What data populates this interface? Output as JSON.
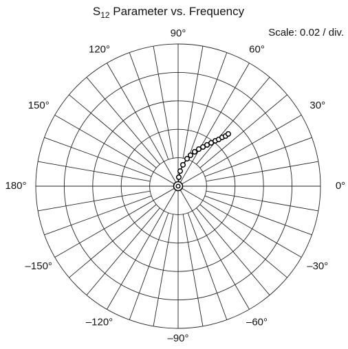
{
  "chart_data": {
    "type": "polar",
    "title": {
      "main": "S",
      "sub": "12",
      "rest": " Parameter vs. Frequency"
    },
    "annotation": "Scale: 0.02 / div.",
    "rlim": [
      0,
      0.1
    ],
    "rticks": [
      0.02,
      0.04,
      0.06,
      0.08,
      0.1
    ],
    "theta_grid_step": 10,
    "thetaticks": [
      {
        "value": 0,
        "label": "0°"
      },
      {
        "value": 30,
        "label": "30°"
      },
      {
        "value": 60,
        "label": "60°"
      },
      {
        "value": 90,
        "label": "90°"
      },
      {
        "value": 120,
        "label": "120°"
      },
      {
        "value": 150,
        "label": "150°"
      },
      {
        "value": 180,
        "label": "180°"
      },
      {
        "value": -150,
        "label": "–150°"
      },
      {
        "value": -120,
        "label": "–120°"
      },
      {
        "value": -90,
        "label": "–90°"
      },
      {
        "value": -60,
        "label": "–60°"
      },
      {
        "value": -30,
        "label": "–30°"
      }
    ],
    "series": [
      {
        "color": "#000000",
        "r": [
          0,
          0.0063,
          0.0107,
          0.0154,
          0.0203,
          0.0234,
          0.0268,
          0.0298,
          0.0326,
          0.0354,
          0.0383,
          0.0412,
          0.0435,
          0.0462,
          0.0485,
          0.0509
        ],
        "theta": [
          0,
          85.6,
          82.2,
          77.3,
          72.0,
          68.2,
          64.4,
          60.9,
          57.7,
          55.0,
          52.7,
          50.7,
          49.1,
          48.0,
          46.6,
          46.2
        ]
      }
    ]
  }
}
